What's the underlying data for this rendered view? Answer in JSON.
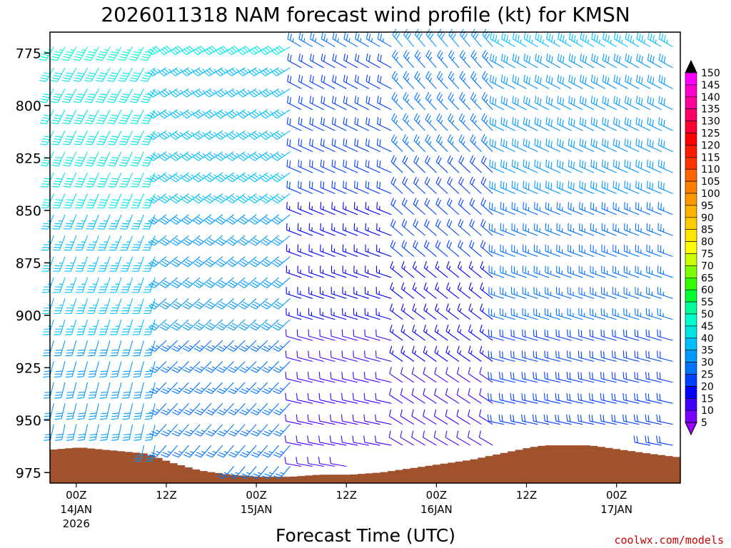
{
  "chart_data": {
    "type": "wind-barb-profile",
    "title": "2026011318 NAM forecast wind profile (kt) for KMSN",
    "xlabel": "Forecast Time (UTC)",
    "ylabel": "",
    "credit": "coolwx.com/models",
    "x_range_hours": [
      -3.5,
      80.5
    ],
    "y_range_hpa": [
      980,
      765
    ],
    "y_ticks": [
      {
        "value": 775,
        "label": "775"
      },
      {
        "value": 800,
        "label": "800"
      },
      {
        "value": 825,
        "label": "825"
      },
      {
        "value": 850,
        "label": "850"
      },
      {
        "value": 875,
        "label": "875"
      },
      {
        "value": 900,
        "label": "900"
      },
      {
        "value": 925,
        "label": "925"
      },
      {
        "value": 950,
        "label": "950"
      },
      {
        "value": 975,
        "label": "975"
      }
    ],
    "x_ticks": [
      {
        "hour": 0,
        "label": "00Z",
        "date": "14JAN",
        "year": "2026"
      },
      {
        "hour": 12,
        "label": "12Z",
        "date": "",
        "year": ""
      },
      {
        "hour": 24,
        "label": "00Z",
        "date": "15JAN",
        "year": ""
      },
      {
        "hour": 36,
        "label": "12Z",
        "date": "",
        "year": ""
      },
      {
        "hour": 48,
        "label": "00Z",
        "date": "16JAN",
        "year": ""
      },
      {
        "hour": 60,
        "label": "12Z",
        "date": "",
        "year": ""
      },
      {
        "hour": 72,
        "label": "00Z",
        "date": "17JAN",
        "year": ""
      }
    ],
    "colorbar": {
      "unit": "kt",
      "levels": [
        150,
        145,
        140,
        135,
        130,
        125,
        120,
        115,
        110,
        105,
        100,
        95,
        90,
        85,
        80,
        75,
        70,
        65,
        60,
        55,
        50,
        45,
        40,
        35,
        30,
        25,
        20,
        15,
        10,
        5
      ],
      "colors": [
        "#ff00ff",
        "#ff00cc",
        "#ff0099",
        "#ff0066",
        "#ff0033",
        "#ff0000",
        "#ff1a00",
        "#ff3300",
        "#ff6600",
        "#ff8000",
        "#ff9900",
        "#ffb300",
        "#ffcc00",
        "#ffe600",
        "#ffff00",
        "#ccff00",
        "#80ff00",
        "#33ff00",
        "#00ff33",
        "#00ff99",
        "#00ffcc",
        "#00e6e6",
        "#00bfff",
        "#0099ff",
        "#0073ff",
        "#0040ff",
        "#0000ff",
        "#4000ff",
        "#7a00ff"
      ],
      "top_arrow_color": "#000000",
      "bottom_arrow_color": "#9a00ff"
    },
    "terrain_color": "#a0522d",
    "terrain_surface_pressure_hpa": [
      {
        "hour": -3.5,
        "p": 964
      },
      {
        "hour": 0,
        "p": 963
      },
      {
        "hour": 6,
        "p": 965
      },
      {
        "hour": 9,
        "p": 966
      },
      {
        "hour": 12,
        "p": 970
      },
      {
        "hour": 16,
        "p": 974
      },
      {
        "hour": 20,
        "p": 976
      },
      {
        "hour": 24,
        "p": 977
      },
      {
        "hour": 28,
        "p": 977
      },
      {
        "hour": 32,
        "p": 976
      },
      {
        "hour": 36,
        "p": 976
      },
      {
        "hour": 40,
        "p": 975
      },
      {
        "hour": 44,
        "p": 973
      },
      {
        "hour": 48,
        "p": 971
      },
      {
        "hour": 52,
        "p": 969
      },
      {
        "hour": 56,
        "p": 966
      },
      {
        "hour": 60,
        "p": 963
      },
      {
        "hour": 62,
        "p": 962
      },
      {
        "hour": 68,
        "p": 962
      },
      {
        "hour": 72,
        "p": 964
      },
      {
        "hour": 76,
        "p": 966
      },
      {
        "hour": 80.5,
        "p": 968
      }
    ],
    "wind_regions": [
      {
        "from_hour": -3.5,
        "to_hour": 12,
        "direction_deg": 200,
        "speed_kt_low": 30,
        "speed_kt_high": 45
      },
      {
        "from_hour": 12,
        "to_hour": 30,
        "direction_deg": 230,
        "speed_kt_low": 25,
        "speed_kt_high": 40
      },
      {
        "from_hour": 30,
        "to_hour": 43,
        "direction_deg": 290,
        "speed_kt_low": 10,
        "speed_kt_high": 25
      },
      {
        "from_hour": 43,
        "to_hour": 56,
        "direction_deg": 310,
        "speed_kt_low": 10,
        "speed_kt_high": 30
      },
      {
        "from_hour": 56,
        "to_hour": 80.5,
        "direction_deg": 290,
        "speed_kt_low": 20,
        "speed_kt_high": 35
      }
    ]
  }
}
